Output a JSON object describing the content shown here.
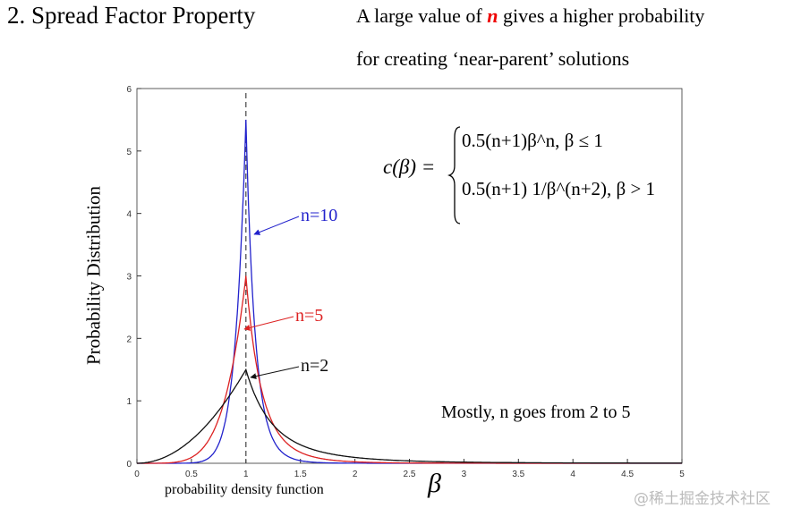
{
  "title": "2. Spread Factor Property",
  "subtitle": {
    "pre": "A large value of ",
    "n": "n",
    "post": " gives a higher probability",
    "line2": "for creating ‘near-parent’ solutions"
  },
  "caption": "probability density function",
  "note": "Mostly, n goes from 2 to 5",
  "watermark": "@稀土掘金技术社区",
  "formula": {
    "lhs": "c(β) =",
    "case1": "0.5(n+1)β^n,  β ≤ 1",
    "case2": "0.5(n+1) 1/β^(n+2), β > 1"
  },
  "chart_data": {
    "type": "line",
    "title": "",
    "xlabel": "β",
    "ylabel": "Probability Distribution",
    "xlim": [
      0,
      5
    ],
    "ylim": [
      0,
      6
    ],
    "xticks": [
      "0",
      "0.5",
      "1",
      "1.5",
      "2",
      "2.5",
      "3",
      "3.5",
      "4",
      "4.5",
      "5"
    ],
    "yticks": [
      "0",
      "1",
      "2",
      "3",
      "4",
      "5",
      "6"
    ],
    "grid": false,
    "reference_line_x": 1,
    "series": [
      {
        "name": "n=10",
        "n": 10,
        "peak": 5.5,
        "color": "#2222cc",
        "label": "n=10"
      },
      {
        "name": "n=5",
        "n": 5,
        "peak": 3.0,
        "color": "#dd2222",
        "label": "n=5"
      },
      {
        "name": "n=2",
        "n": 2,
        "peak": 1.5,
        "color": "#111111",
        "label": "n=2"
      }
    ]
  }
}
